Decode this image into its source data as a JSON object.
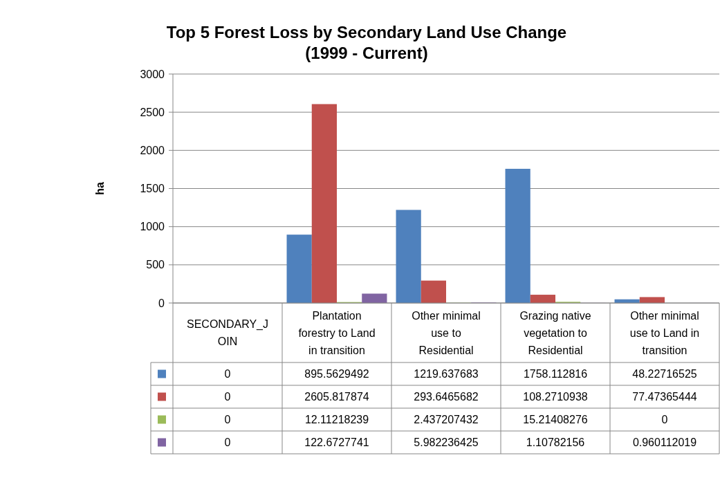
{
  "chart_data": {
    "type": "bar",
    "title": "Top 5 Forest Loss by Secondary Land Use Change (1999 - Current)",
    "ylabel": "ha",
    "categories": [
      "SECONDARY_JOIN",
      "Plantation forestry to Land in transition",
      "Other minimal use to Residential",
      "Grazing native vegetation to Residential",
      "Other minimal use to Land in transition"
    ],
    "series": [
      {
        "color": "#4f81bd",
        "values": [
          0,
          895.5629492,
          1219.637683,
          1758.112816,
          48.22716525
        ]
      },
      {
        "color": "#c0504d",
        "values": [
          0,
          2605.817874,
          293.6465682,
          108.2710938,
          77.47365444
        ]
      },
      {
        "color": "#9bbb59",
        "values": [
          0,
          12.11218239,
          2.437207432,
          15.21408276,
          0
        ]
      },
      {
        "color": "#8064a2",
        "values": [
          0,
          122.6727741,
          5.982236425,
          1.10782156,
          0.960112019
        ]
      }
    ],
    "ylim": [
      0,
      3000
    ],
    "yticks": [
      0,
      500,
      1000,
      1500,
      2000,
      2500,
      3000
    ],
    "grid": "y",
    "data_labels": true
  }
}
